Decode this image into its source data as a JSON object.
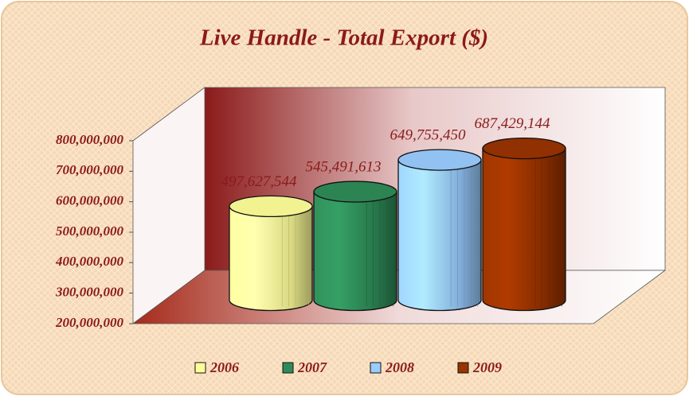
{
  "chart_data": {
    "type": "cylinder",
    "title": "Live Handle - Total Export ($)",
    "categories": [
      null
    ],
    "series": [
      {
        "name": "2006",
        "color": "#ffff99",
        "values": [
          497627544
        ],
        "value_labels": [
          "497,627,544"
        ]
      },
      {
        "name": "2007",
        "color": "#2e8b57",
        "values": [
          545491613
        ],
        "value_labels": [
          "545,491,613"
        ]
      },
      {
        "name": "2008",
        "color": "#99ccff",
        "values": [
          649755450
        ],
        "value_labels": [
          "649,755,450"
        ]
      },
      {
        "name": "2009",
        "color": "#993300",
        "values": [
          687429144
        ],
        "value_labels": [
          "687,429,144"
        ]
      }
    ],
    "ylim": [
      200000000,
      800000000
    ],
    "yticks": [
      {
        "value": 200000000,
        "label": "200,000,000"
      },
      {
        "value": 300000000,
        "label": "300,000,000"
      },
      {
        "value": 400000000,
        "label": "400,000,000"
      },
      {
        "value": 500000000,
        "label": "500,000,000"
      },
      {
        "value": 600000000,
        "label": "600,000,000"
      },
      {
        "value": 700000000,
        "label": "700,000,000"
      },
      {
        "value": 800000000,
        "label": "800,000,000"
      }
    ],
    "legend": "bottom"
  }
}
